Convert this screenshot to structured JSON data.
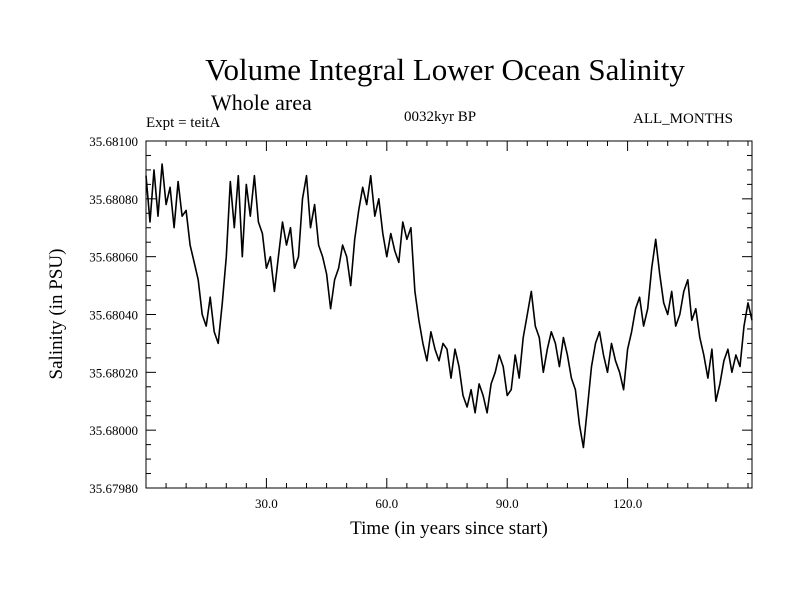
{
  "chart_data": {
    "type": "line",
    "title": "Volume Integral Lower Ocean Salinity",
    "subtitle": "Whole area",
    "experiment": "Expt = teitA",
    "period": "0032kyr BP",
    "months": "ALL_MONTHS",
    "xlabel": "Time (in years since start)",
    "ylabel": "Salinity (in PSU)",
    "xlim": [
      0,
      151
    ],
    "ylim": [
      35.6798,
      35.681
    ],
    "x_ticks": [
      30,
      60,
      90,
      120
    ],
    "x_tick_labels": [
      "30.0",
      "60.0",
      "90.0",
      "120.0"
    ],
    "y_ticks": [
      35.6798,
      35.68,
      35.6802,
      35.6804,
      35.6806,
      35.6808,
      35.681
    ],
    "y_tick_labels": [
      "35.67980",
      "35.68000",
      "35.68020",
      "35.68040",
      "35.68060",
      "35.68080",
      "35.68100"
    ],
    "grid": false,
    "series": [
      {
        "name": "Salinity",
        "x": [
          0,
          1,
          2,
          3,
          4,
          5,
          6,
          7,
          8,
          9,
          10,
          11,
          12,
          13,
          14,
          15,
          16,
          17,
          18,
          19,
          20,
          21,
          22,
          23,
          24,
          25,
          26,
          27,
          28,
          29,
          30,
          31,
          32,
          33,
          34,
          35,
          36,
          37,
          38,
          39,
          40,
          41,
          42,
          43,
          44,
          45,
          46,
          47,
          48,
          49,
          50,
          51,
          52,
          53,
          54,
          55,
          56,
          57,
          58,
          59,
          60,
          61,
          62,
          63,
          64,
          65,
          66,
          67,
          68,
          69,
          70,
          71,
          72,
          73,
          74,
          75,
          76,
          77,
          78,
          79,
          80,
          81,
          82,
          83,
          84,
          85,
          86,
          87,
          88,
          89,
          90,
          91,
          92,
          93,
          94,
          95,
          96,
          97,
          98,
          99,
          100,
          101,
          102,
          103,
          104,
          105,
          106,
          107,
          108,
          109,
          110,
          111,
          112,
          113,
          114,
          115,
          116,
          117,
          118,
          119,
          120,
          121,
          122,
          123,
          124,
          125,
          126,
          127,
          128,
          129,
          130,
          131,
          132,
          133,
          134,
          135,
          136,
          137,
          138,
          139,
          140,
          141,
          142,
          143,
          144,
          145,
          146,
          147,
          148,
          149,
          150,
          151
        ],
        "values": [
          35.68088,
          35.68072,
          35.6809,
          35.68074,
          35.68092,
          35.68078,
          35.68084,
          35.6807,
          35.68086,
          35.68074,
          35.68076,
          35.68064,
          35.68058,
          35.68052,
          35.6804,
          35.68036,
          35.68046,
          35.68034,
          35.6803,
          35.68044,
          35.6806,
          35.68086,
          35.6807,
          35.68088,
          35.6806,
          35.68085,
          35.68074,
          35.68088,
          35.68072,
          35.68068,
          35.68056,
          35.6806,
          35.68048,
          35.6806,
          35.68072,
          35.68064,
          35.6807,
          35.68056,
          35.6806,
          35.6808,
          35.68088,
          35.6807,
          35.68078,
          35.68064,
          35.6806,
          35.68054,
          35.68042,
          35.68052,
          35.68056,
          35.68064,
          35.6806,
          35.6805,
          35.68066,
          35.68076,
          35.68084,
          35.68078,
          35.68088,
          35.68074,
          35.6808,
          35.68068,
          35.6806,
          35.68068,
          35.68062,
          35.68058,
          35.68072,
          35.68066,
          35.6807,
          35.68048,
          35.68038,
          35.6803,
          35.68024,
          35.68034,
          35.68028,
          35.68024,
          35.6803,
          35.68028,
          35.68018,
          35.68028,
          35.68022,
          35.68012,
          35.68008,
          35.68014,
          35.68006,
          35.68016,
          35.68012,
          35.68006,
          35.68016,
          35.6802,
          35.68026,
          35.68022,
          35.68012,
          35.68014,
          35.68026,
          35.68018,
          35.68032,
          35.6804,
          35.68048,
          35.68036,
          35.68032,
          35.6802,
          35.68028,
          35.68034,
          35.6803,
          35.68022,
          35.68032,
          35.68026,
          35.68018,
          35.68014,
          35.68002,
          35.67994,
          35.68008,
          35.68022,
          35.6803,
          35.68034,
          35.68026,
          35.6802,
          35.6803,
          35.68024,
          35.6802,
          35.68014,
          35.68028,
          35.68034,
          35.68042,
          35.68046,
          35.68036,
          35.68042,
          35.68056,
          35.68066,
          35.68054,
          35.68044,
          35.6804,
          35.68048,
          35.68036,
          35.6804,
          35.68048,
          35.68052,
          35.68038,
          35.68042,
          35.68032,
          35.68026,
          35.68018,
          35.68028,
          35.6801,
          35.68016,
          35.68024,
          35.68028,
          35.6802,
          35.68026,
          35.68022,
          35.68036,
          35.68044,
          35.68038
        ]
      }
    ]
  }
}
